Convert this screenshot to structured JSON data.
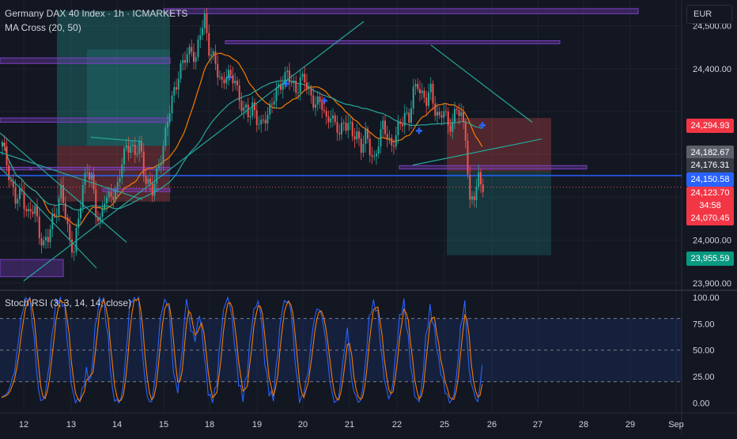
{
  "header": {
    "title": "Germany DAX 40 Index · 1h · ICMARKETS",
    "indicator": "MA Cross (20, 50)",
    "currency": "EUR"
  },
  "colors": {
    "up": "#26a69a",
    "down": "#ef5350",
    "ma_fast": "#f57c00",
    "ma_slow": "#26a69a",
    "zone": "#7b3fbf",
    "trend": "#26a69a",
    "blue_line": "#2962ff",
    "stoch_k": "#2962ff",
    "stoch_d": "#f57c00",
    "cross": "#2962ff"
  },
  "chart_data": [
    {
      "type": "candlestick",
      "title": "Germany DAX 40 Index · 1h · ICMARKETS",
      "x_ticks": [
        "12",
        "13",
        "14",
        "15",
        "18",
        "19",
        "20",
        "21",
        "22",
        "25",
        "26",
        "27",
        "28",
        "29",
        "Sep"
      ],
      "ylim": [
        23885,
        24560
      ],
      "y_ticks": [
        24500.0,
        24400.0,
        24000.0,
        23900.0
      ],
      "y_tick_labels": [
        "24,500.00",
        "24,400.00",
        "24,000.00",
        "23,900.00"
      ],
      "price_labels": [
        {
          "value": 24294.93,
          "text": "24,294.93",
          "kind": "down"
        },
        {
          "value": 24182.67,
          "text": "24,182.67",
          "kind": "grey"
        },
        {
          "value": 24176.31,
          "text": "24,176.31",
          "kind": "dark"
        },
        {
          "value": 24150.58,
          "text": "24,150.58",
          "kind": "blue"
        },
        {
          "value": 24123.7,
          "text": "24,123.70",
          "kind": "down",
          "sub": "34:58"
        },
        {
          "value": 24070.45,
          "text": "24,070.45",
          "kind": "down"
        },
        {
          "value": 23955.59,
          "text": "23,955.59",
          "kind": "up"
        }
      ],
      "close_path": [
        [
          0,
          24220
        ],
        [
          3,
          24160
        ],
        [
          6,
          24090
        ],
        [
          9,
          24110
        ],
        [
          12,
          24060
        ],
        [
          15,
          24070
        ],
        [
          17,
          24020
        ],
        [
          19,
          23990
        ],
        [
          21,
          24000
        ],
        [
          23,
          24050
        ],
        [
          25,
          24080
        ],
        [
          27,
          24110
        ],
        [
          29,
          24060
        ],
        [
          31,
          24000
        ],
        [
          33,
          23980
        ],
        [
          35,
          24040
        ],
        [
          37,
          24130
        ],
        [
          39,
          24170
        ],
        [
          41,
          24140
        ],
        [
          43,
          24060
        ],
        [
          45,
          24050
        ],
        [
          47,
          24100
        ],
        [
          49,
          24090
        ],
        [
          51,
          24110
        ],
        [
          53,
          24130
        ],
        [
          55,
          24180
        ],
        [
          57,
          24210
        ],
        [
          59,
          24230
        ],
        [
          61,
          24200
        ],
        [
          63,
          24220
        ],
        [
          65,
          24160
        ],
        [
          67,
          24140
        ],
        [
          69,
          24110
        ],
        [
          71,
          24150
        ],
        [
          73,
          24200
        ],
        [
          75,
          24250
        ],
        [
          77,
          24300
        ],
        [
          79,
          24350
        ],
        [
          81,
          24390
        ],
        [
          83,
          24410
        ],
        [
          85,
          24430
        ],
        [
          87,
          24450
        ],
        [
          89,
          24420
        ],
        [
          91,
          24480
        ],
        [
          93,
          24520
        ],
        [
          95,
          24450
        ],
        [
          97,
          24420
        ],
        [
          99,
          24390
        ],
        [
          101,
          24370
        ],
        [
          103,
          24390
        ],
        [
          105,
          24370
        ],
        [
          107,
          24380
        ],
        [
          109,
          24330
        ],
        [
          111,
          24300
        ],
        [
          113,
          24290
        ],
        [
          115,
          24320
        ],
        [
          117,
          24280
        ],
        [
          119,
          24260
        ],
        [
          121,
          24290
        ],
        [
          123,
          24310
        ],
        [
          125,
          24330
        ],
        [
          127,
          24350
        ],
        [
          129,
          24380
        ],
        [
          131,
          24390
        ],
        [
          133,
          24360
        ],
        [
          135,
          24350
        ],
        [
          137,
          24380
        ],
        [
          139,
          24370
        ],
        [
          141,
          24340
        ],
        [
          143,
          24330
        ],
        [
          145,
          24320
        ],
        [
          147,
          24310
        ],
        [
          149,
          24280
        ],
        [
          151,
          24300
        ],
        [
          153,
          24260
        ],
        [
          155,
          24250
        ],
        [
          157,
          24280
        ],
        [
          159,
          24270
        ],
        [
          161,
          24240
        ],
        [
          163,
          24250
        ],
        [
          165,
          24220
        ],
        [
          167,
          24240
        ],
        [
          169,
          24210
        ],
        [
          171,
          24190
        ],
        [
          173,
          24230
        ],
        [
          175,
          24260
        ],
        [
          177,
          24250
        ],
        [
          179,
          24220
        ],
        [
          181,
          24240
        ],
        [
          183,
          24270
        ],
        [
          185,
          24300
        ],
        [
          187,
          24280
        ],
        [
          189,
          24340
        ],
        [
          191,
          24370
        ],
        [
          193,
          24340
        ],
        [
          195,
          24320
        ],
        [
          197,
          24350
        ],
        [
          199,
          24310
        ],
        [
          201,
          24280
        ],
        [
          203,
          24300
        ],
        [
          205,
          24270
        ],
        [
          207,
          24280
        ],
        [
          209,
          24300
        ],
        [
          211,
          24290
        ],
        [
          213,
          24250
        ],
        [
          215,
          24080
        ],
        [
          217,
          24100
        ],
        [
          219,
          24150
        ],
        [
          221,
          24130
        ]
      ],
      "stoch_rsi": {
        "title": "Stoch RSI (3, 3, 14, 14, close)",
        "ylim": [
          -8,
          106
        ],
        "y_ticks": [
          100.0,
          75.0,
          50.0,
          25.0,
          0.0
        ],
        "y_tick_labels": [
          "100.00",
          "75.00",
          "50.00",
          "25.00",
          "0.00"
        ],
        "band": [
          20,
          80
        ],
        "k": [
          [
            0,
            5
          ],
          [
            3,
            10
          ],
          [
            6,
            30
          ],
          [
            9,
            80
          ],
          [
            11,
            100
          ],
          [
            13,
            98
          ],
          [
            15,
            60
          ],
          [
            17,
            10
          ],
          [
            19,
            0
          ],
          [
            21,
            20
          ],
          [
            23,
            60
          ],
          [
            25,
            95
          ],
          [
            27,
            100
          ],
          [
            29,
            90
          ],
          [
            31,
            40
          ],
          [
            33,
            5
          ],
          [
            35,
            0
          ],
          [
            37,
            10
          ],
          [
            39,
            30
          ],
          [
            41,
            20
          ],
          [
            43,
            70
          ],
          [
            45,
            100
          ],
          [
            47,
            98
          ],
          [
            49,
            60
          ],
          [
            51,
            10
          ],
          [
            53,
            0
          ],
          [
            55,
            2
          ],
          [
            57,
            40
          ],
          [
            59,
            95
          ],
          [
            61,
            100
          ],
          [
            63,
            98
          ],
          [
            65,
            40
          ],
          [
            67,
            5
          ],
          [
            69,
            0
          ],
          [
            71,
            30
          ],
          [
            73,
            80
          ],
          [
            75,
            98
          ],
          [
            77,
            90
          ],
          [
            79,
            30
          ],
          [
            81,
            10
          ],
          [
            83,
            50
          ],
          [
            85,
            100
          ],
          [
            87,
            70
          ],
          [
            89,
            60
          ],
          [
            91,
            85
          ],
          [
            93,
            50
          ],
          [
            95,
            10
          ],
          [
            97,
            0
          ],
          [
            99,
            20
          ],
          [
            101,
            70
          ],
          [
            103,
            98
          ],
          [
            105,
            95
          ],
          [
            107,
            60
          ],
          [
            109,
            20
          ],
          [
            111,
            5
          ],
          [
            113,
            30
          ],
          [
            115,
            75
          ],
          [
            117,
            95
          ],
          [
            119,
            90
          ],
          [
            121,
            40
          ],
          [
            123,
            10
          ],
          [
            125,
            5
          ],
          [
            127,
            50
          ],
          [
            129,
            90
          ],
          [
            131,
            98
          ],
          [
            133,
            90
          ],
          [
            135,
            40
          ],
          [
            137,
            0
          ],
          [
            139,
            10
          ],
          [
            141,
            30
          ],
          [
            143,
            70
          ],
          [
            145,
            90
          ],
          [
            147,
            85
          ],
          [
            149,
            60
          ],
          [
            151,
            20
          ],
          [
            153,
            0
          ],
          [
            155,
            5
          ],
          [
            157,
            40
          ],
          [
            159,
            70
          ],
          [
            161,
            20
          ],
          [
            163,
            5
          ],
          [
            165,
            0
          ],
          [
            167,
            30
          ],
          [
            169,
            80
          ],
          [
            171,
            95
          ],
          [
            173,
            85
          ],
          [
            175,
            40
          ],
          [
            177,
            10
          ],
          [
            179,
            5
          ],
          [
            181,
            40
          ],
          [
            183,
            80
          ],
          [
            185,
            95
          ],
          [
            187,
            60
          ],
          [
            189,
            20
          ],
          [
            191,
            0
          ],
          [
            193,
            10
          ],
          [
            195,
            60
          ],
          [
            197,
            90
          ],
          [
            199,
            70
          ],
          [
            201,
            40
          ],
          [
            203,
            20
          ],
          [
            205,
            5
          ],
          [
            207,
            0
          ],
          [
            209,
            20
          ],
          [
            211,
            70
          ],
          [
            213,
            95
          ],
          [
            215,
            30
          ],
          [
            217,
            10
          ],
          [
            219,
            0
          ],
          [
            221,
            35
          ]
        ]
      }
    }
  ]
}
